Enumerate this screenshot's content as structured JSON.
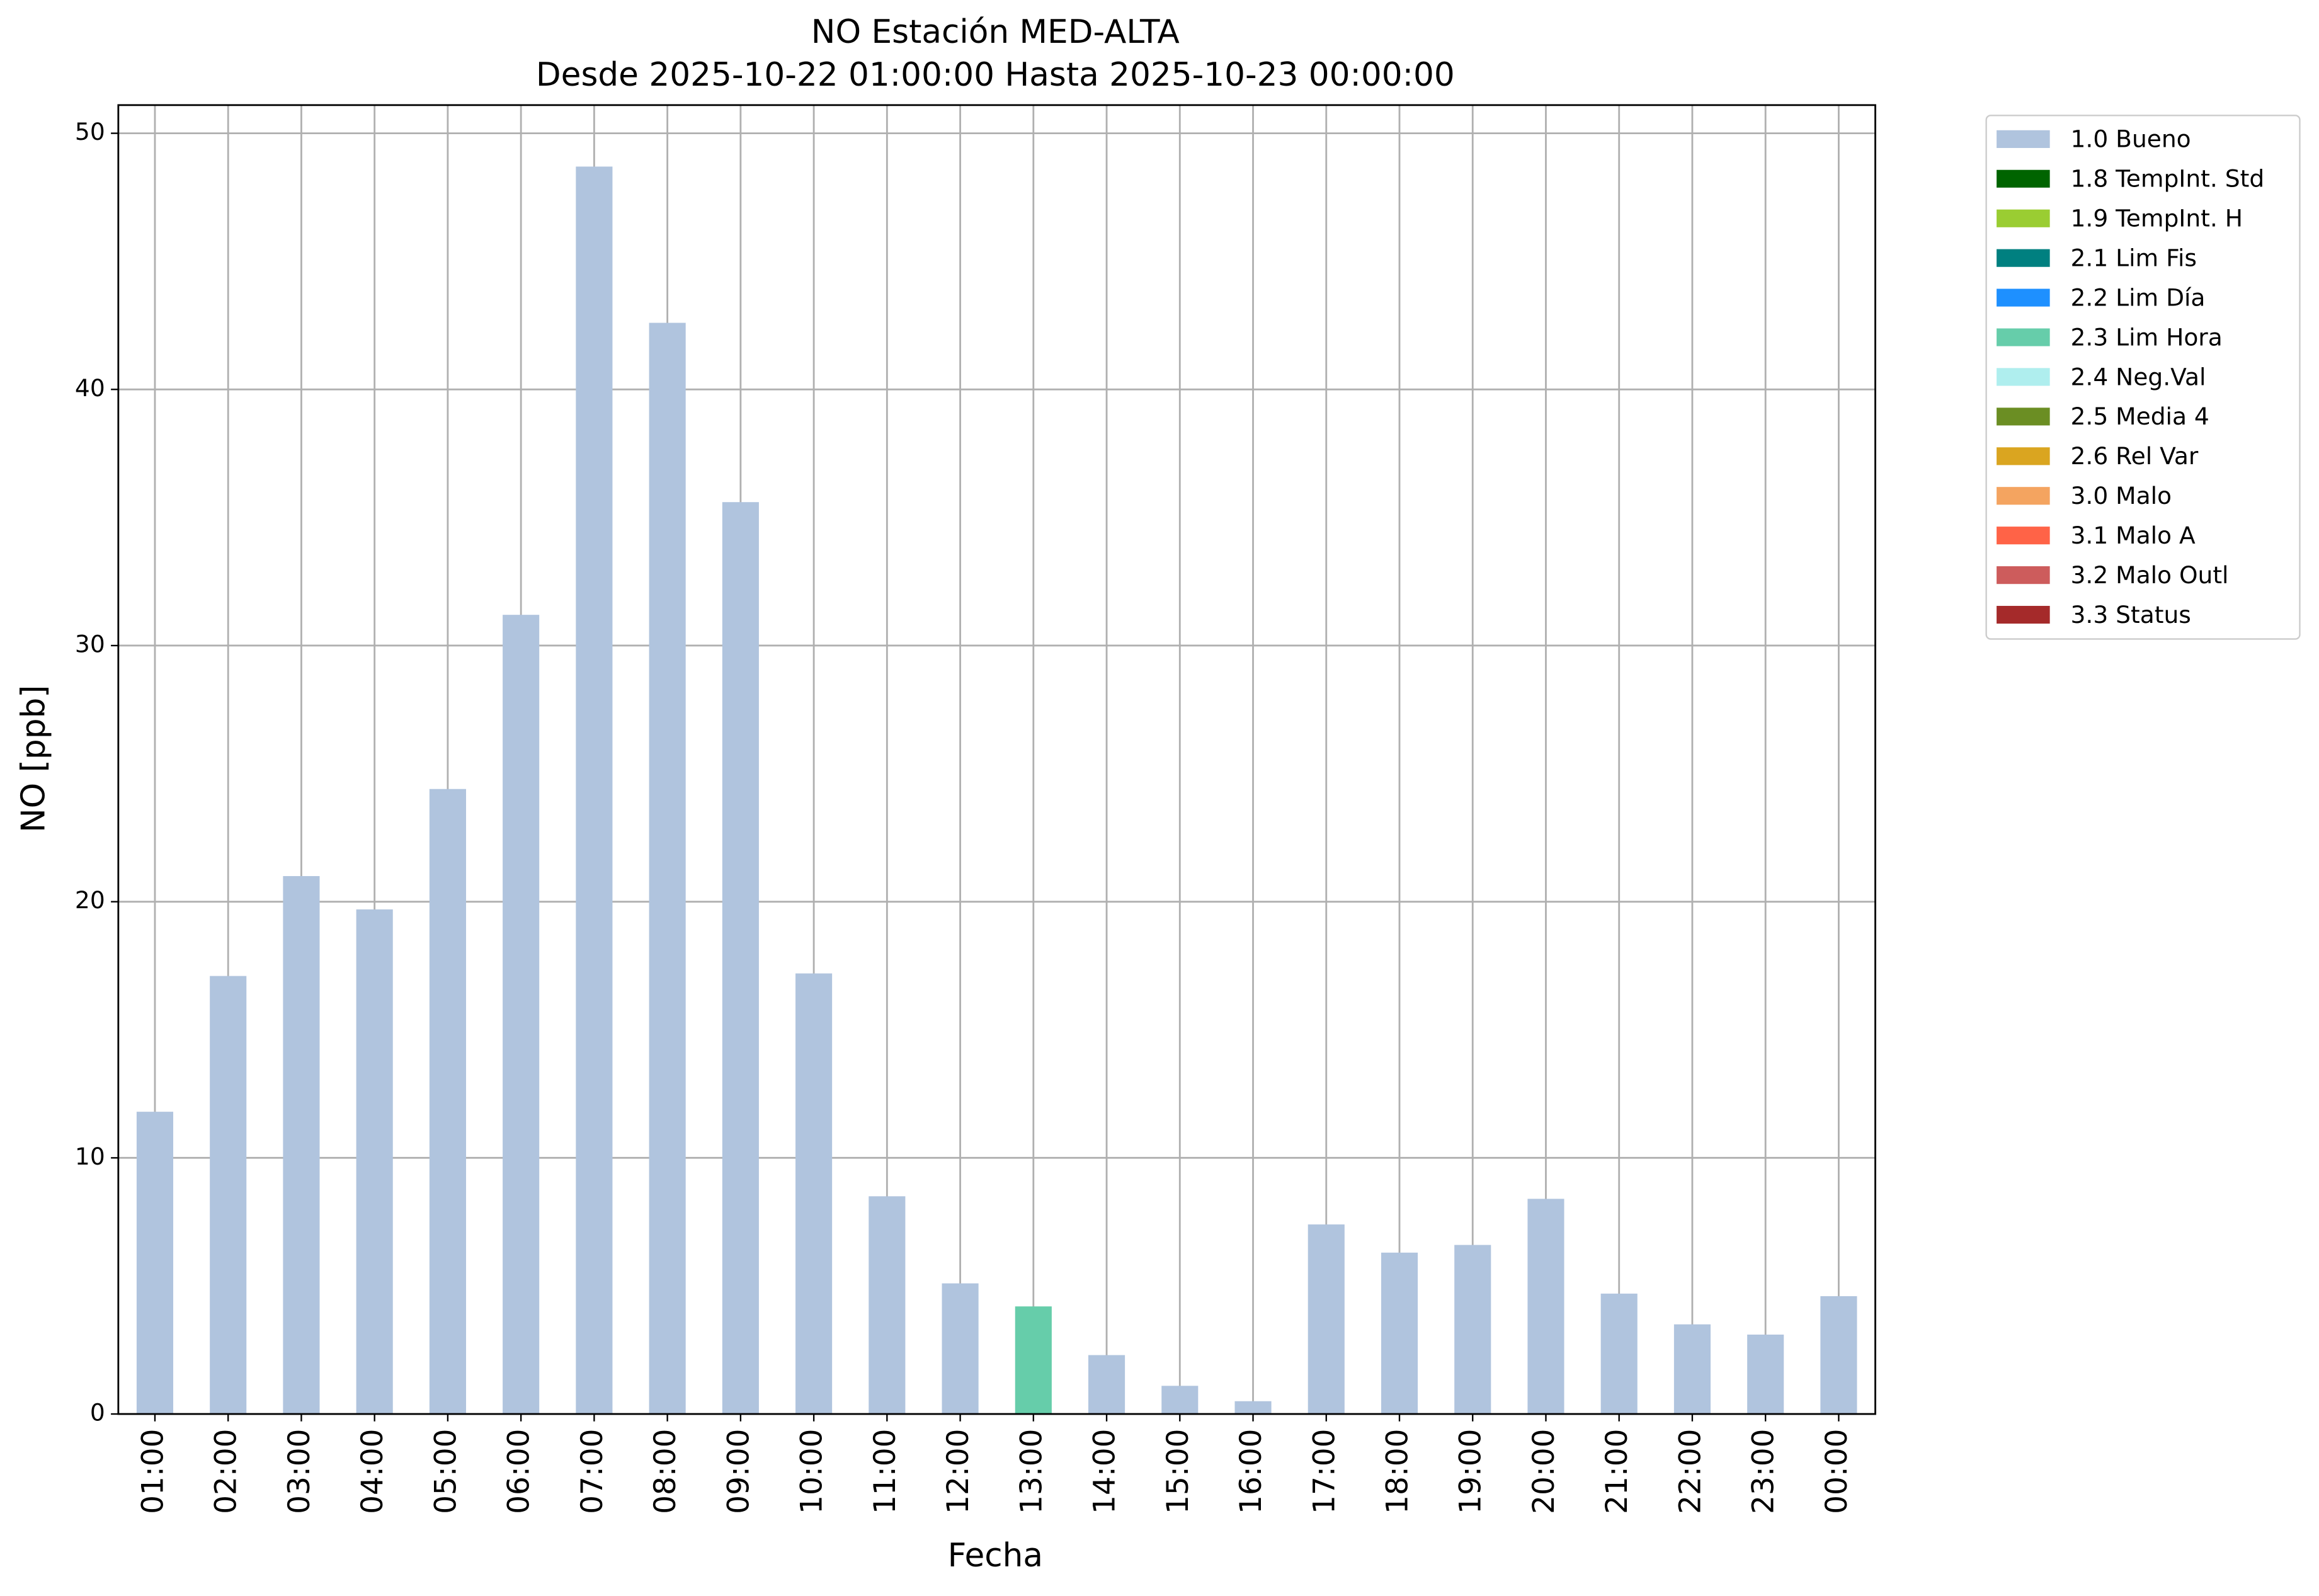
{
  "chart_data": {
    "type": "bar",
    "stacked": true,
    "title": "NO Estación MED-ALTA",
    "subtitle": "Desde 2025-10-22 01:00:00 Hasta 2025-10-23 00:00:00",
    "x_label": "Fecha",
    "y_label": "NO [ppb]",
    "categories": [
      "01:00",
      "02:00",
      "03:00",
      "04:00",
      "05:00",
      "06:00",
      "07:00",
      "08:00",
      "09:00",
      "10:00",
      "11:00",
      "12:00",
      "13:00",
      "14:00",
      "15:00",
      "16:00",
      "17:00",
      "18:00",
      "19:00",
      "20:00",
      "21:00",
      "22:00",
      "23:00",
      "00:00"
    ],
    "series": [
      {
        "name": "1.0 Bueno",
        "color": "#b0c4de",
        "values": [
          11.8,
          17.1,
          21.0,
          19.7,
          24.4,
          31.2,
          48.7,
          42.6,
          35.6,
          17.2,
          8.5,
          5.1,
          null,
          2.3,
          1.1,
          0.5,
          7.4,
          6.3,
          6.6,
          8.4,
          4.7,
          3.5,
          3.1,
          4.6
        ]
      },
      {
        "name": "1.8 TempInt. Std",
        "color": "#006400",
        "values": [
          null,
          null,
          null,
          null,
          null,
          null,
          null,
          null,
          null,
          null,
          null,
          null,
          null,
          null,
          null,
          null,
          null,
          null,
          null,
          null,
          null,
          null,
          null,
          null
        ]
      },
      {
        "name": "1.9 TempInt. H",
        "color": "#9acd32",
        "values": [
          null,
          null,
          null,
          null,
          null,
          null,
          null,
          null,
          null,
          null,
          null,
          null,
          null,
          null,
          null,
          null,
          null,
          null,
          null,
          null,
          null,
          null,
          null,
          null
        ]
      },
      {
        "name": "2.1 Lim Fis",
        "color": "#008080",
        "values": [
          null,
          null,
          null,
          null,
          null,
          null,
          null,
          null,
          null,
          null,
          null,
          null,
          null,
          null,
          null,
          null,
          null,
          null,
          null,
          null,
          null,
          null,
          null,
          null
        ]
      },
      {
        "name": "2.2 Lim Día",
        "color": "#1e90ff",
        "values": [
          null,
          null,
          null,
          null,
          null,
          null,
          null,
          null,
          null,
          null,
          null,
          null,
          null,
          null,
          null,
          null,
          null,
          null,
          null,
          null,
          null,
          null,
          null,
          null
        ]
      },
      {
        "name": "2.3 Lim Hora",
        "color": "#66cdaa",
        "values": [
          null,
          null,
          null,
          null,
          null,
          null,
          null,
          null,
          null,
          null,
          null,
          null,
          4.2,
          null,
          null,
          null,
          null,
          null,
          null,
          null,
          null,
          null,
          null,
          null
        ]
      },
      {
        "name": "2.4 Neg.Val",
        "color": "#afeeee",
        "values": [
          null,
          null,
          null,
          null,
          null,
          null,
          null,
          null,
          null,
          null,
          null,
          null,
          null,
          null,
          null,
          null,
          null,
          null,
          null,
          null,
          null,
          null,
          null,
          null
        ]
      },
      {
        "name": "2.5 Media 4",
        "color": "#6b8e23",
        "values": [
          null,
          null,
          null,
          null,
          null,
          null,
          null,
          null,
          null,
          null,
          null,
          null,
          null,
          null,
          null,
          null,
          null,
          null,
          null,
          null,
          null,
          null,
          null,
          null
        ]
      },
      {
        "name": "2.6 Rel Var",
        "color": "#daa520",
        "values": [
          null,
          null,
          null,
          null,
          null,
          null,
          null,
          null,
          null,
          null,
          null,
          null,
          null,
          null,
          null,
          null,
          null,
          null,
          null,
          null,
          null,
          null,
          null,
          null
        ]
      },
      {
        "name": "3.0 Malo",
        "color": "#f4a460",
        "values": [
          null,
          null,
          null,
          null,
          null,
          null,
          null,
          null,
          null,
          null,
          null,
          null,
          null,
          null,
          null,
          null,
          null,
          null,
          null,
          null,
          null,
          null,
          null,
          null
        ]
      },
      {
        "name": "3.1 Malo A",
        "color": "#ff6347",
        "values": [
          null,
          null,
          null,
          null,
          null,
          null,
          null,
          null,
          null,
          null,
          null,
          null,
          null,
          null,
          null,
          null,
          null,
          null,
          null,
          null,
          null,
          null,
          null,
          null
        ]
      },
      {
        "name": "3.2 Malo Outl",
        "color": "#cd5c5c",
        "values": [
          null,
          null,
          null,
          null,
          null,
          null,
          null,
          null,
          null,
          null,
          null,
          null,
          null,
          null,
          null,
          null,
          null,
          null,
          null,
          null,
          null,
          null,
          null,
          null
        ]
      },
      {
        "name": "3.3 Status",
        "color": "#a52a2a",
        "values": [
          null,
          null,
          null,
          null,
          null,
          null,
          null,
          null,
          null,
          null,
          null,
          null,
          null,
          null,
          null,
          null,
          null,
          null,
          null,
          null,
          null,
          null,
          null,
          null
        ]
      }
    ],
    "ylim": [
      0,
      51.1
    ],
    "yticks": [
      0,
      10,
      20,
      30,
      40,
      50
    ],
    "grid": true,
    "legend": "outside upper right"
  }
}
